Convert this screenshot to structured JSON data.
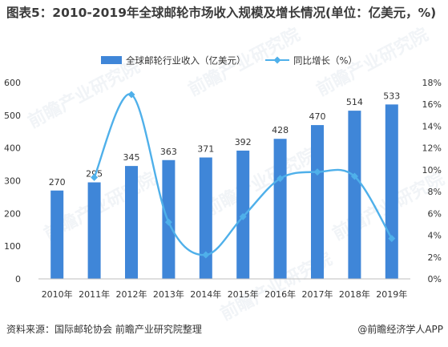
{
  "header": {
    "title": "图表5：2010-2019年全球邮轮市场收入规模及增长情况(单位：亿美元，%)"
  },
  "footer": {
    "source": "资料来源：国际邮轮协会 前瞻产业研究院整理",
    "brand": "@前瞻经济学人APP"
  },
  "colors": {
    "bar": "#3f86d8",
    "line": "#4fb0ea",
    "axis_text": "#333333",
    "axis_line": "#bfbfbf"
  },
  "chart_data": {
    "type": "bar",
    "categories": [
      "2010年",
      "2011年",
      "2012年",
      "2013年",
      "2014年",
      "2015年",
      "2016年",
      "2017年",
      "2018年",
      "2019年"
    ],
    "series": [
      {
        "name": "全球邮轮行业收入（亿美元）",
        "type": "bar",
        "axis": "left",
        "values": [
          270,
          295,
          345,
          363,
          371,
          392,
          428,
          470,
          514,
          533
        ]
      },
      {
        "name": "同比增长（%）",
        "type": "line",
        "axis": "right",
        "values": [
          null,
          9.3,
          16.9,
          5.2,
          2.2,
          5.7,
          9.2,
          9.8,
          9.4,
          3.7
        ]
      }
    ],
    "y_left": {
      "min": 0,
      "max": 600,
      "ticks": [
        "0",
        "100",
        "200",
        "300",
        "400",
        "500",
        "600"
      ]
    },
    "y_right": {
      "min": 0,
      "max": 18,
      "ticks": [
        "0%",
        "2%",
        "4%",
        "6%",
        "8%",
        "10%",
        "12%",
        "14%",
        "16%",
        "18%"
      ]
    },
    "legend_position": "top",
    "grid": false,
    "data_labels": [
      "270",
      "295",
      "345",
      "363",
      "371",
      "392",
      "428",
      "470",
      "514",
      "533"
    ]
  }
}
